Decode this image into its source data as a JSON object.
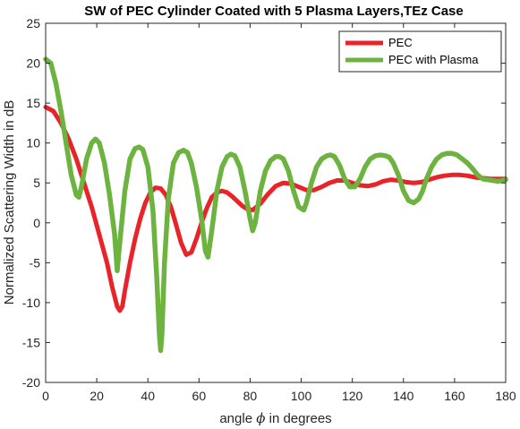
{
  "chart_data": {
    "type": "line",
    "title": "SW of PEC Cylinder Coated with 5 Plasma Layers,TEz Case",
    "xlabel_prefix": "angle",
    "xlabel_symbol": "ϕ",
    "xlabel_suffix": "in degrees",
    "ylabel": "Normalized Scattering Width in dB",
    "xlim": [
      0,
      180
    ],
    "ylim": [
      -20,
      25
    ],
    "xticks": [
      0,
      20,
      40,
      60,
      80,
      100,
      120,
      140,
      160,
      180
    ],
    "yticks": [
      -20,
      -15,
      -10,
      -5,
      0,
      5,
      10,
      15,
      20,
      25
    ],
    "grid": false,
    "legend_position": "top-right",
    "series": [
      {
        "name": "PEC",
        "color": "#e8232a",
        "x": [
          0,
          3,
          6,
          9,
          12,
          15,
          18,
          21,
          24,
          26,
          28,
          29,
          30,
          31,
          33,
          35,
          37,
          39,
          41,
          43,
          45,
          47,
          49,
          51,
          53,
          55,
          57,
          59,
          61,
          63,
          65,
          67,
          69,
          71,
          73,
          75,
          77,
          79,
          81,
          84,
          87,
          90,
          93,
          96,
          99,
          102,
          105,
          108,
          111,
          114,
          117,
          120,
          123,
          126,
          129,
          132,
          135,
          138,
          141,
          144,
          147,
          150,
          153,
          156,
          159,
          162,
          165,
          168,
          171,
          174,
          177,
          180
        ],
        "y": [
          14.5,
          14.0,
          12.5,
          10.5,
          8.0,
          5.0,
          2.0,
          -1.5,
          -5.0,
          -8.0,
          -10.5,
          -11.0,
          -10.5,
          -8.5,
          -5.0,
          -2.0,
          0.5,
          2.5,
          3.8,
          4.4,
          4.3,
          3.5,
          2.0,
          -0.2,
          -2.5,
          -4.0,
          -3.7,
          -2.0,
          0.0,
          1.8,
          3.2,
          3.8,
          4.0,
          3.8,
          3.3,
          2.7,
          2.1,
          1.7,
          1.6,
          2.4,
          3.6,
          4.6,
          5.0,
          4.9,
          4.5,
          4.1,
          4.1,
          4.5,
          5.0,
          5.3,
          5.3,
          5.0,
          4.7,
          4.6,
          4.8,
          5.2,
          5.4,
          5.3,
          5.1,
          5.0,
          5.1,
          5.4,
          5.7,
          5.9,
          6.0,
          6.0,
          5.9,
          5.7,
          5.6,
          5.5,
          5.5,
          5.5
        ]
      },
      {
        "name": "PEC with Plasma",
        "color": "#6db33f",
        "x": [
          0,
          2,
          4,
          6,
          8,
          10,
          12,
          13,
          14,
          16,
          18,
          19.5,
          21,
          23,
          25,
          27,
          28,
          29,
          31,
          33,
          35,
          36.5,
          38,
          40,
          42,
          43.5,
          44.5,
          45,
          45.5,
          46.5,
          48,
          50,
          52,
          54,
          55.5,
          57,
          59,
          61,
          62.5,
          63.5,
          65,
          67,
          69,
          71,
          72.5,
          74,
          76,
          78,
          80,
          81,
          82,
          84,
          86,
          88,
          90,
          91.5,
          93,
          95,
          97,
          99,
          101,
          102,
          104,
          106,
          108,
          110,
          111.5,
          113,
          115,
          117,
          119,
          121,
          123,
          125,
          127,
          129,
          131,
          133,
          134.5,
          136,
          138,
          140,
          142,
          144,
          146,
          147.5,
          149,
          151,
          153,
          155,
          157,
          159,
          161,
          163,
          165,
          167,
          169,
          171,
          173,
          175,
          177,
          178.5,
          180
        ],
        "y": [
          20.5,
          20.0,
          17.5,
          14.0,
          10.0,
          6.0,
          3.5,
          3.2,
          4.5,
          8.0,
          10.0,
          10.5,
          10.0,
          7.5,
          3.5,
          -1.5,
          -6.0,
          -2.5,
          4.0,
          8.0,
          9.3,
          9.5,
          9.2,
          7.0,
          1.5,
          -7.0,
          -14.0,
          -16.0,
          -14.0,
          -5.0,
          3.0,
          7.5,
          8.8,
          9.1,
          8.8,
          7.5,
          4.5,
          0.5,
          -3.5,
          -4.3,
          -1.0,
          4.0,
          7.0,
          8.3,
          8.6,
          8.4,
          7.0,
          4.0,
          0.5,
          -1.0,
          0.0,
          4.0,
          6.5,
          7.8,
          8.3,
          8.3,
          8.0,
          6.5,
          4.0,
          2.0,
          1.6,
          2.5,
          5.0,
          7.0,
          8.0,
          8.4,
          8.5,
          8.3,
          7.2,
          5.5,
          4.5,
          4.5,
          5.5,
          7.0,
          8.0,
          8.4,
          8.5,
          8.4,
          8.2,
          7.5,
          6.0,
          4.0,
          2.8,
          2.5,
          3.0,
          4.0,
          5.5,
          7.0,
          8.0,
          8.5,
          8.7,
          8.7,
          8.5,
          8.0,
          7.5,
          6.8,
          6.0,
          5.5,
          5.4,
          5.3,
          5.2,
          5.3,
          5.4
        ]
      }
    ]
  }
}
